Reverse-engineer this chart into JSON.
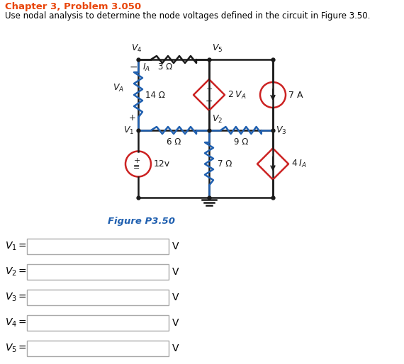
{
  "title_bold": "Chapter 3, Problem 3.050",
  "title_normal": "Use nodal analysis to determine the node voltages defined in the circuit in Figure 3.50.",
  "figure_label": "Figure P3.50",
  "title_color": "#E8450A",
  "black": "#000000",
  "blue_color": "#2060B0",
  "circuit_black": "#1a1a1a",
  "red_color": "#CC2222",
  "diamond_red": "#CC3333",
  "box_border": "#aaaaaa",
  "xl": 195,
  "xm": 295,
  "xr": 385,
  "yt": 430,
  "ym": 330,
  "yb": 235
}
